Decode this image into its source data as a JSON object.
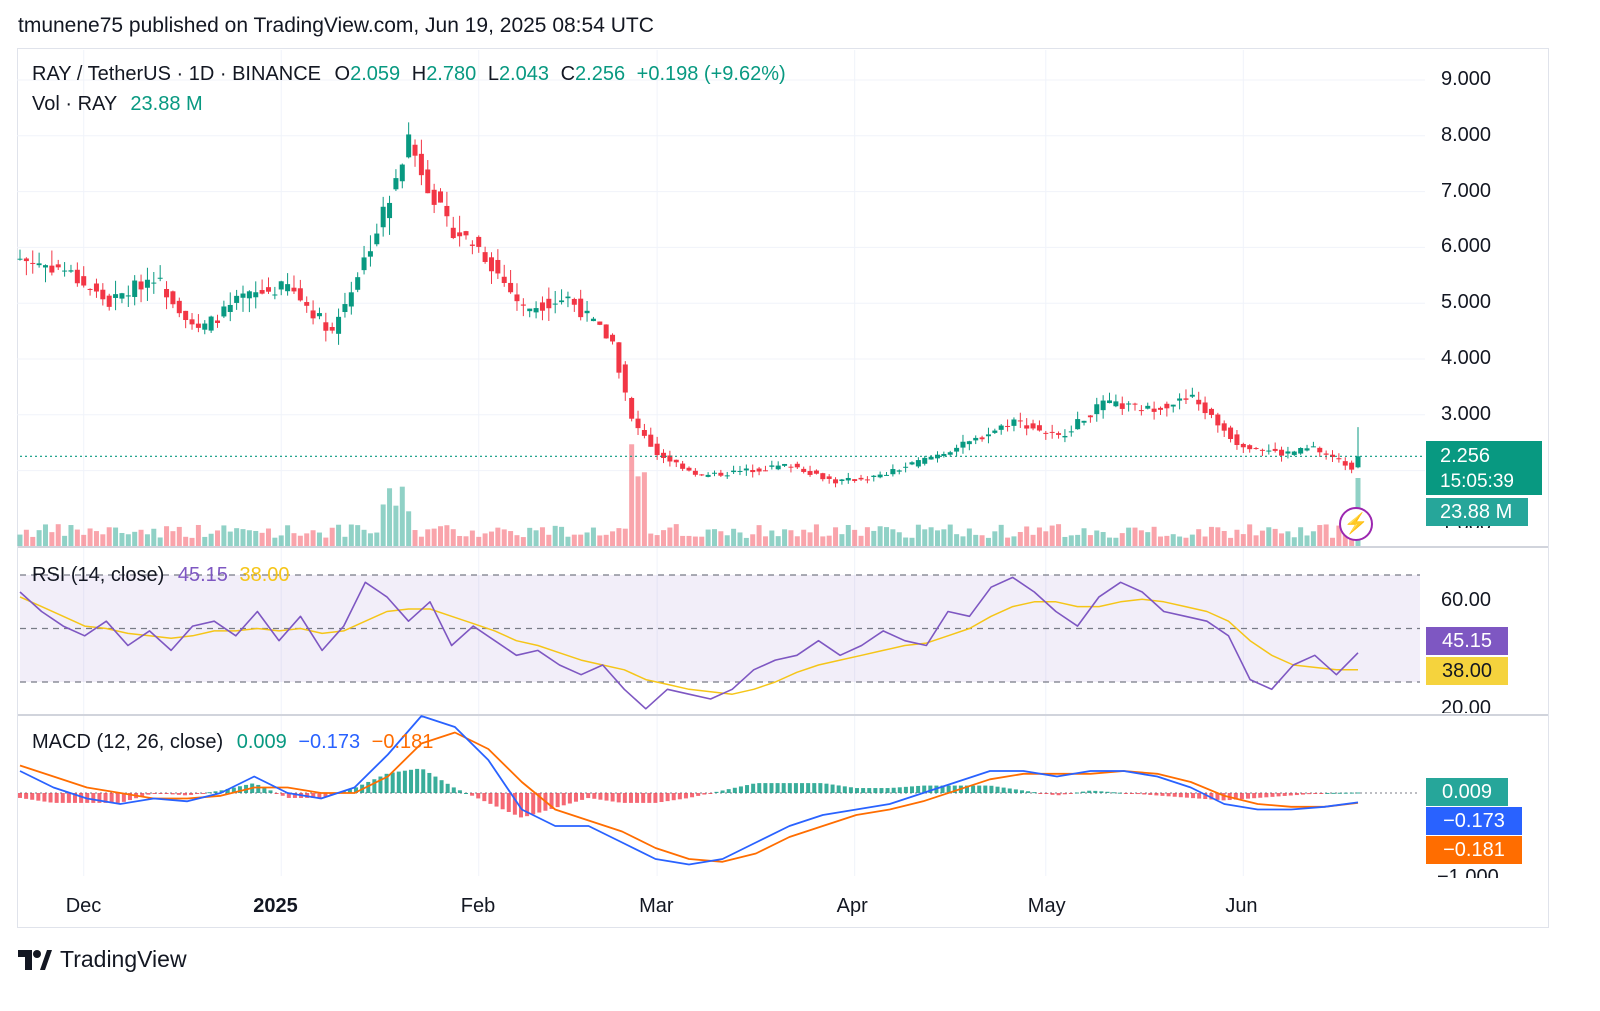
{
  "header": {
    "text": "tmunene75 published on TradingView.com, Jun 19, 2025 08:54 UTC"
  },
  "legend": {
    "symbol": "RAY / TetherUS · 1D · BINANCE",
    "o_label": "O",
    "o_value": "2.059",
    "h_label": "H",
    "h_value": "2.780",
    "l_label": "L",
    "l_value": "2.043",
    "c_label": "C",
    "c_value": "2.256",
    "change": "+0.198 (+9.62%)",
    "vol_label": "Vol · RAY",
    "vol_value": "23.88 M"
  },
  "price_axis": {
    "ticks": [
      "9.000",
      "8.000",
      "7.000",
      "6.000",
      "5.000",
      "4.000",
      "3.000",
      "1.000"
    ]
  },
  "badges": {
    "price": "2.256",
    "countdown": "15:05:39",
    "volume": "23.88 M",
    "rsi": "45.15",
    "rsi_ma": "38.00",
    "macd_hist": "0.009",
    "macd": "−0.173",
    "signal": "−0.181"
  },
  "rsi_legend": {
    "label": "RSI (14, close)",
    "value": "45.15",
    "ma_value": "38.00"
  },
  "rsi_axis": {
    "ticks": [
      "60.00",
      "20.00"
    ]
  },
  "macd_legend": {
    "label": "MACD (12, 26, close)",
    "hist": "0.009",
    "macd": "−0.173",
    "signal": "−0.181"
  },
  "macd_axis": {
    "ticks": [
      "−1.000"
    ]
  },
  "x_axis": {
    "labels": [
      "Dec",
      "2025",
      "Feb",
      "Mar",
      "Apr",
      "May",
      "Jun"
    ]
  },
  "footer": {
    "brand": "TradingView"
  },
  "icons": {
    "flash": "lightning-icon",
    "logo": "tradingview-logo"
  },
  "colors": {
    "up": "#089981",
    "down": "#f23645",
    "rsi": "#7e57c2",
    "rsi_ma": "#f5c518",
    "macd": "#2962ff",
    "signal": "#ff6d00"
  },
  "chart_data": [
    {
      "type": "candlestick",
      "title": "RAY / TetherUS · 1D · BINANCE",
      "ylim": [
        1,
        9
      ],
      "x_range": [
        "2024-11-21",
        "2025-06-19"
      ],
      "ohlc_last": {
        "open": 2.059,
        "high": 2.78,
        "low": 2.043,
        "close": 2.256
      },
      "close_approx": [
        {
          "date": "2024-11-21",
          "close": 5.8
        },
        {
          "date": "2024-11-28",
          "close": 5.6
        },
        {
          "date": "2024-12-05",
          "close": 5.0
        },
        {
          "date": "2024-12-12",
          "close": 5.5
        },
        {
          "date": "2024-12-19",
          "close": 4.5
        },
        {
          "date": "2024-12-26",
          "close": 5.1
        },
        {
          "date": "2025-01-02",
          "close": 5.3
        },
        {
          "date": "2025-01-09",
          "close": 4.5
        },
        {
          "date": "2025-01-16",
          "close": 6.3
        },
        {
          "date": "2025-01-21",
          "close": 7.9
        },
        {
          "date": "2025-01-27",
          "close": 6.4
        },
        {
          "date": "2025-02-01",
          "close": 6.0
        },
        {
          "date": "2025-02-08",
          "close": 4.9
        },
        {
          "date": "2025-02-15",
          "close": 5.1
        },
        {
          "date": "2025-02-22",
          "close": 4.3
        },
        {
          "date": "2025-02-25",
          "close": 2.9
        },
        {
          "date": "2025-03-01",
          "close": 2.3
        },
        {
          "date": "2025-03-08",
          "close": 1.9
        },
        {
          "date": "2025-03-15",
          "close": 2.0
        },
        {
          "date": "2025-03-22",
          "close": 2.1
        },
        {
          "date": "2025-03-29",
          "close": 1.8
        },
        {
          "date": "2025-04-05",
          "close": 1.9
        },
        {
          "date": "2025-04-12",
          "close": 2.2
        },
        {
          "date": "2025-04-19",
          "close": 2.5
        },
        {
          "date": "2025-04-26",
          "close": 2.9
        },
        {
          "date": "2025-05-03",
          "close": 2.6
        },
        {
          "date": "2025-05-10",
          "close": 3.2
        },
        {
          "date": "2025-05-17",
          "close": 3.1
        },
        {
          "date": "2025-05-24",
          "close": 3.3
        },
        {
          "date": "2025-05-31",
          "close": 2.5
        },
        {
          "date": "2025-06-07",
          "close": 2.3
        },
        {
          "date": "2025-06-12",
          "close": 2.4
        },
        {
          "date": "2025-06-18",
          "close": 2.06
        },
        {
          "date": "2025-06-19",
          "close": 2.256
        }
      ]
    },
    {
      "type": "bar",
      "title": "Vol · RAY",
      "last_value": "23.88 M"
    },
    {
      "type": "line",
      "title": "RSI (14, close)",
      "ylim": [
        20,
        80
      ],
      "series": [
        {
          "name": "RSI",
          "last": 45.15,
          "values": [
            70,
            62,
            56,
            52,
            58,
            48,
            54,
            46,
            56,
            58,
            52,
            62,
            50,
            60,
            46,
            56,
            74,
            68,
            58,
            66,
            48,
            56,
            50,
            44,
            46,
            40,
            36,
            40,
            30,
            22,
            30,
            28,
            26,
            30,
            38,
            42,
            44,
            50,
            44,
            48,
            54,
            50,
            48,
            62,
            60,
            72,
            76,
            70,
            62,
            56,
            68,
            74,
            70,
            62,
            60,
            58,
            52,
            34,
            30,
            40,
            44,
            36,
            45
          ]
        },
        {
          "name": "MA",
          "last": 38.0,
          "values": [
            68,
            64,
            60,
            56,
            55,
            53,
            52,
            51,
            52,
            54,
            54,
            55,
            54,
            55,
            53,
            54,
            58,
            62,
            63,
            63,
            60,
            57,
            54,
            50,
            48,
            45,
            42,
            40,
            38,
            34,
            32,
            30,
            29,
            28,
            30,
            33,
            37,
            40,
            42,
            44,
            46,
            48,
            49,
            52,
            55,
            60,
            64,
            66,
            66,
            64,
            64,
            66,
            67,
            66,
            64,
            62,
            58,
            50,
            44,
            40,
            39,
            38,
            38
          ]
        }
      ]
    },
    {
      "type": "line",
      "title": "MACD (12, 26, close)",
      "series": [
        {
          "name": "MACD",
          "last": -0.173,
          "values": [
            0.4,
            0.1,
            -0.1,
            -0.2,
            -0.1,
            -0.15,
            0.0,
            0.3,
            0.0,
            -0.1,
            0.1,
            0.7,
            1.4,
            1.2,
            0.6,
            -0.3,
            -0.6,
            -0.6,
            -0.9,
            -1.2,
            -1.3,
            -1.2,
            -0.9,
            -0.6,
            -0.4,
            -0.3,
            -0.2,
            0.0,
            0.2,
            0.4,
            0.4,
            0.3,
            0.4,
            0.4,
            0.3,
            0.1,
            -0.2,
            -0.3,
            -0.3,
            -0.25,
            -0.17
          ]
        },
        {
          "name": "Signal",
          "last": -0.181,
          "values": [
            0.5,
            0.3,
            0.1,
            0.0,
            -0.1,
            -0.1,
            -0.05,
            0.1,
            0.1,
            0.0,
            0.0,
            0.3,
            0.9,
            1.1,
            0.8,
            0.2,
            -0.3,
            -0.5,
            -0.7,
            -1.0,
            -1.2,
            -1.25,
            -1.1,
            -0.8,
            -0.6,
            -0.4,
            -0.3,
            -0.15,
            0.05,
            0.25,
            0.35,
            0.35,
            0.35,
            0.4,
            0.35,
            0.2,
            -0.05,
            -0.2,
            -0.25,
            -0.25,
            -0.18
          ]
        },
        {
          "name": "Histogram",
          "last": 0.009
        }
      ]
    }
  ]
}
